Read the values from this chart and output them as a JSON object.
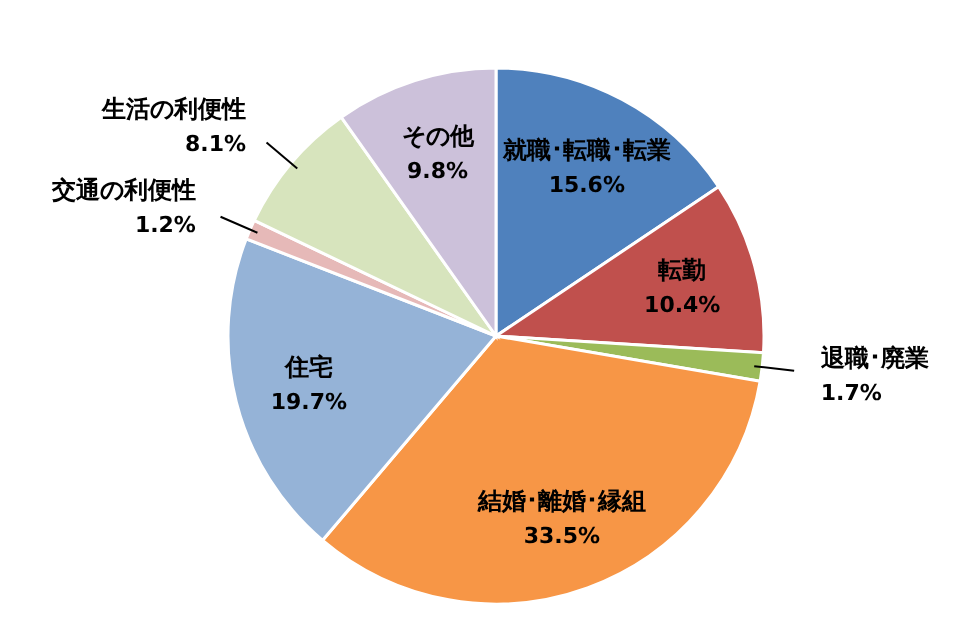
{
  "chart_data": {
    "type": "pie",
    "categories": [
      "就職･転職･転業",
      "転勤",
      "退職･廃業",
      "結婚･離婚･縁組",
      "住宅",
      "交通の利便性",
      "生活の利便性",
      "その他"
    ],
    "values": [
      15.6,
      10.4,
      1.7,
      33.5,
      19.7,
      1.2,
      8.1,
      9.8
    ],
    "colors": [
      "#4f81bd",
      "#c0504d",
      "#9bbb59",
      "#f79646",
      "#95b3d7",
      "#e6b9b8",
      "#d7e4bd",
      "#ccc1da"
    ],
    "value_labels": [
      "15.6%",
      "10.4%",
      "1.7%",
      "33.5%",
      "19.7%",
      "1.2%",
      "8.1%",
      "9.8%"
    ]
  }
}
